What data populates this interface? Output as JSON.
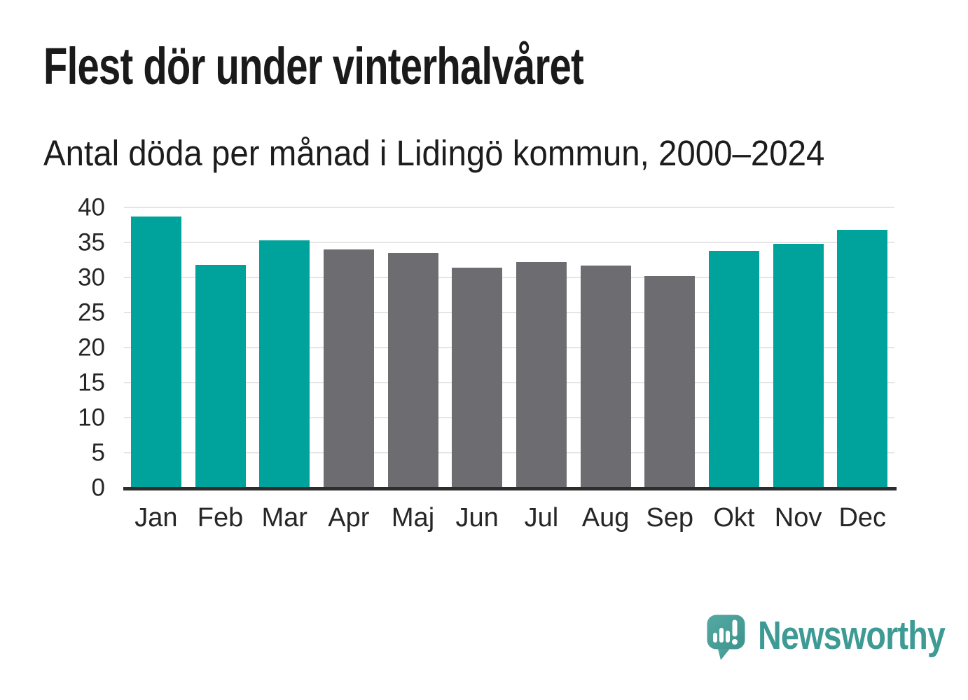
{
  "chart_data": {
    "type": "bar",
    "title": "Flest dör under vinterhalvåret",
    "subtitle": "Antal döda per månad i Lidingö kommun, 2000–2024",
    "categories": [
      "Jan",
      "Feb",
      "Mar",
      "Apr",
      "Maj",
      "Jun",
      "Jul",
      "Aug",
      "Sep",
      "Okt",
      "Nov",
      "Dec"
    ],
    "values": [
      38.7,
      31.8,
      35.3,
      34,
      33.5,
      31.4,
      32.2,
      31.7,
      30.2,
      33.8,
      34.8,
      36.8
    ],
    "bar_colors": [
      "teal",
      "teal",
      "teal",
      "gray",
      "gray",
      "gray",
      "gray",
      "gray",
      "gray",
      "teal",
      "teal",
      "teal"
    ],
    "palette": {
      "teal": "#00a39b",
      "gray": "#6d6c71"
    },
    "xlabel": "",
    "ylabel": "",
    "ylim": [
      0,
      40
    ],
    "yticks": [
      0,
      5,
      10,
      15,
      20,
      25,
      30,
      35,
      40
    ],
    "grid": true,
    "gridline_color": "#e5e5e5",
    "axis_color": "#2d2d2d",
    "tick_label_color": "#262626",
    "legend": "none"
  },
  "branding": {
    "logo_text": "Newsworthy",
    "logo_color": "#3d9a94",
    "logo_icon": "speech-bubble-bar-chart-icon",
    "icon_gradient": {
      "start": "#55a9a2",
      "end": "#3d948d"
    }
  }
}
